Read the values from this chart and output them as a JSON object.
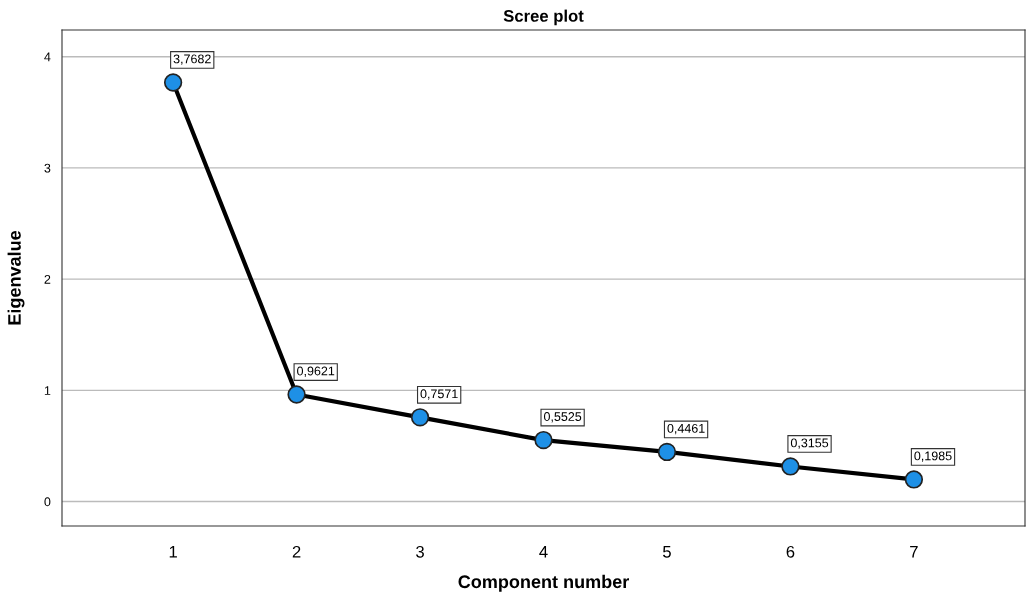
{
  "chart_data": {
    "type": "line",
    "title": "Scree plot",
    "xlabel": "Component number",
    "ylabel": "Eigenvalue",
    "x": [
      1,
      2,
      3,
      4,
      5,
      6,
      7
    ],
    "series": [
      {
        "color": "#000000",
        "colors": [
          "#1e90e6",
          "#1e90e6",
          "#1e90e6",
          "#1e90e6",
          "#1e90e6",
          "#1e90e6",
          "#1e90e6"
        ],
        "values": [
          3.7682,
          0.9621,
          0.7571,
          0.5525,
          0.4461,
          0.3155,
          0.1985
        ],
        "value_labels": [
          "3,7682",
          "0,9621",
          "0,7571",
          "0,5525",
          "0,4461",
          "0,3155",
          "0,1985"
        ]
      }
    ],
    "xlim": [
      0.1,
      7.9
    ],
    "xticks": [
      1,
      2,
      3,
      4,
      5,
      6,
      7
    ],
    "ylim": [
      -0.22,
      4.24
    ],
    "yticks": [
      0,
      1,
      2,
      3,
      4
    ],
    "grid": "y",
    "marker": "circle",
    "line_style": "solid"
  }
}
